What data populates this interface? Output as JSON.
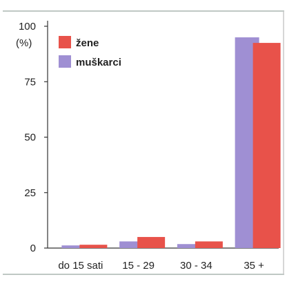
{
  "chart_data": {
    "type": "bar",
    "title": "",
    "xlabel": "",
    "ylabel": "(%)",
    "ylim": [
      0,
      100
    ],
    "yticks": [
      "0",
      "25",
      "50",
      "75",
      "100"
    ],
    "grid": false,
    "legend_position": "top-left",
    "categories": [
      "do 15 sati",
      "15 - 29",
      "30 - 34",
      "35 +"
    ],
    "series": [
      {
        "name": "muškarci",
        "color": "#9f8fd3",
        "values": [
          1.2,
          3.0,
          1.8,
          95.0
        ]
      },
      {
        "name": "žene",
        "color": "#e8524a",
        "values": [
          1.5,
          5.0,
          3.0,
          92.5
        ]
      }
    ],
    "legend_order": [
      "žene",
      "muškarci"
    ]
  }
}
